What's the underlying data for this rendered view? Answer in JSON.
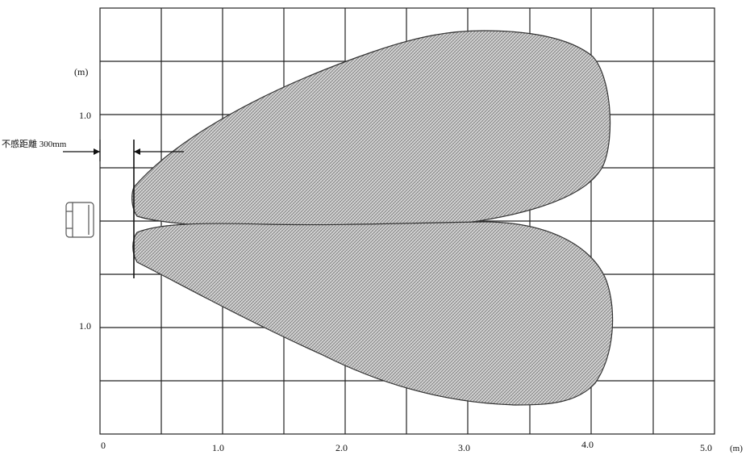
{
  "diagram": {
    "unit_y": "(m)",
    "unit_x": "(m)",
    "y_tick_upper": "1.0",
    "y_tick_lower": "1.0",
    "x_ticks": [
      "0",
      "1.0",
      "2.0",
      "3.0",
      "4.0",
      "5.0"
    ],
    "annotation": "不感距離 300mm",
    "colors": {
      "grid": "#222222",
      "zone_fill": "#c7c7c7",
      "zone_outline": "#333333"
    }
  }
}
